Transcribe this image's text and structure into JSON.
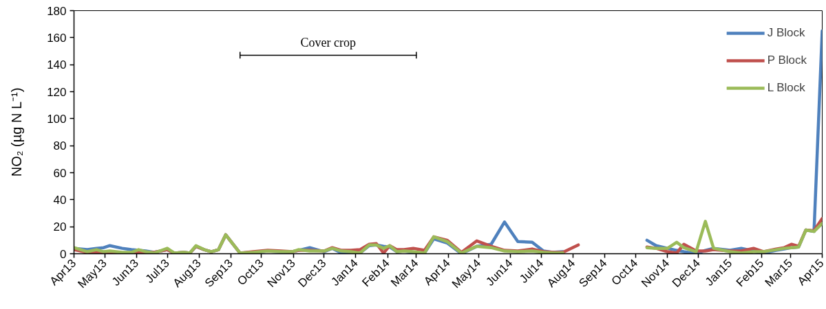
{
  "chart_data": {
    "type": "line",
    "ylabel": "NO₂ (µg N L⁻¹)",
    "x": [
      "2013-04-01",
      "2013-04-14",
      "2013-04-23",
      "2013-04-30",
      "2013-05-06",
      "2013-05-18",
      "2013-05-27",
      "2013-06-03",
      "2013-06-10",
      "2013-06-18",
      "2013-07-01",
      "2013-07-08",
      "2013-07-17",
      "2013-07-23",
      "2013-07-29",
      "2013-08-06",
      "2013-08-13",
      "2013-08-20",
      "2013-08-27",
      "2013-09-10",
      "2013-09-23",
      "2013-10-07",
      "2013-10-20",
      "2013-10-31",
      "2013-11-06",
      "2013-11-17",
      "2013-12-01",
      "2013-12-09",
      "2013-12-18",
      "2013-12-27",
      "2014-01-05",
      "2014-01-14",
      "2014-01-21",
      "2014-01-28",
      "2014-02-03",
      "2014-02-10",
      "2014-02-17",
      "2014-02-26",
      "2014-03-09",
      "2014-03-18",
      "2014-03-31",
      "2014-04-14",
      "2014-04-29",
      "2014-05-13",
      "2014-05-26",
      "2014-06-08",
      "2014-06-22",
      "2014-07-03",
      "2014-07-12",
      "2014-07-22",
      "2014-08-06",
      "2014-09-15",
      "2014-10-12",
      "2014-10-21",
      "2014-11-01",
      "2014-11-10",
      "2014-11-17",
      "2014-11-29",
      "2014-12-08",
      "2014-12-16",
      "2015-01-01",
      "2015-01-12",
      "2015-01-24",
      "2015-02-03",
      "2015-02-15",
      "2015-02-23",
      "2015-03-02",
      "2015-03-09",
      "2015-03-16",
      "2015-03-24",
      "2015-04-01"
    ],
    "series": [
      {
        "name": "J Block",
        "color": "#4f81bd",
        "values": [
          4,
          3,
          4,
          4.5,
          6,
          4,
          3,
          2.5,
          2,
          1,
          3,
          0.5,
          1,
          0.5,
          5.5,
          3,
          1.5,
          3,
          14,
          0.5,
          1,
          2,
          1.5,
          1.5,
          2.5,
          4.5,
          1.5,
          4,
          0.5,
          0,
          0.5,
          6,
          6.5,
          5.5,
          5,
          1.5,
          2,
          1,
          0.5,
          11,
          8,
          0,
          5.5,
          7,
          23.5,
          9,
          8.5,
          2,
          1,
          1.5,
          null,
          null,
          10,
          6,
          4,
          2.5,
          1.5,
          0,
          2.5,
          4,
          2.5,
          4,
          2,
          0.5,
          2.5,
          3.5,
          4.5,
          5,
          17.5,
          16.5,
          165
        ]
      },
      {
        "name": "P Block",
        "color": "#c0504d",
        "values": [
          3,
          1,
          1.5,
          0.5,
          1,
          0.5,
          0.5,
          1.5,
          1,
          1,
          3,
          0.5,
          1,
          0.5,
          5.5,
          3,
          1.5,
          3,
          14,
          0.5,
          1.5,
          2.5,
          2,
          1.5,
          2.5,
          2.5,
          2,
          4.5,
          2.5,
          2.5,
          3,
          7,
          7.5,
          0.5,
          6,
          3,
          3,
          4,
          2.5,
          12.5,
          10,
          1,
          9.5,
          5.5,
          2.5,
          2,
          3.5,
          1.5,
          1,
          1,
          6.5,
          null,
          5,
          4,
          1.5,
          0.5,
          7,
          2,
          2,
          3,
          2,
          2,
          4,
          1.5,
          3.5,
          4.5,
          7,
          5.5,
          17.5,
          17,
          26
        ]
      },
      {
        "name": "L Block",
        "color": "#9bbb59",
        "values": [
          4.5,
          1.5,
          3,
          1.5,
          2,
          1,
          1,
          3,
          1.5,
          0.5,
          4,
          0.5,
          1,
          0.5,
          6,
          3,
          1.5,
          3,
          14,
          0.5,
          1,
          2,
          1.5,
          1.5,
          3,
          2,
          2,
          4,
          2,
          1.5,
          0.5,
          6.5,
          6.5,
          4,
          6,
          1.5,
          2,
          1.5,
          0.5,
          12.5,
          9,
          0.5,
          5.5,
          4.5,
          2,
          1.5,
          2,
          1,
          0.5,
          0.5,
          null,
          null,
          4.5,
          4,
          4,
          8.5,
          4.5,
          1.5,
          24,
          4,
          1.5,
          0.5,
          1.5,
          1.5,
          3,
          4,
          4.5,
          5,
          17.5,
          16.5,
          22.5
        ]
      },
      {
        "type": "line",
        "color": "#000000",
        "x": [
          "2013-09-10",
          "2014-03-01"
        ],
        "values": [
          147,
          147
        ],
        "errors": [
          2.5,
          2.5
        ]
      }
    ],
    "annotations": [
      {
        "text": "Cover crop",
        "x": "2013-12-05",
        "y": 147
      }
    ],
    "xlim": [
      "2013-04-01",
      "2015-04-01"
    ],
    "xticks": [
      {
        "value": "2013-04-01",
        "label": "Apr13"
      },
      {
        "value": "2013-05-01",
        "label": "May13"
      },
      {
        "value": "2013-06-01",
        "label": "Jun13"
      },
      {
        "value": "2013-07-01",
        "label": "Jul13"
      },
      {
        "value": "2013-08-01",
        "label": "Aug13"
      },
      {
        "value": "2013-09-01",
        "label": "Sep13"
      },
      {
        "value": "2013-10-01",
        "label": "Oct13"
      },
      {
        "value": "2013-11-01",
        "label": "Nov13"
      },
      {
        "value": "2013-12-01",
        "label": "Dec13"
      },
      {
        "value": "2014-01-01",
        "label": "Jan14"
      },
      {
        "value": "2014-02-01",
        "label": "Feb14"
      },
      {
        "value": "2014-03-01",
        "label": "Mar14"
      },
      {
        "value": "2014-04-01",
        "label": "Apr14"
      },
      {
        "value": "2014-05-01",
        "label": "May14"
      },
      {
        "value": "2014-06-01",
        "label": "Jun14"
      },
      {
        "value": "2014-07-01",
        "label": "Jul14"
      },
      {
        "value": "2014-08-01",
        "label": "Aug14"
      },
      {
        "value": "2014-09-01",
        "label": "Sep14"
      },
      {
        "value": "2014-10-01",
        "label": "Oct14"
      },
      {
        "value": "2014-11-01",
        "label": "Nov14"
      },
      {
        "value": "2014-12-01",
        "label": "Dec14"
      },
      {
        "value": "2015-01-01",
        "label": "Jan15"
      },
      {
        "value": "2015-02-01",
        "label": "Feb15"
      },
      {
        "value": "2015-03-01",
        "label": "Mar15"
      },
      {
        "value": "2015-04-01",
        "label": "Apr15"
      }
    ],
    "ylim": [
      0,
      180
    ],
    "yticks": [
      0,
      20,
      40,
      60,
      80,
      100,
      120,
      140,
      160,
      180
    ],
    "legend": "top right",
    "grid": false
  }
}
